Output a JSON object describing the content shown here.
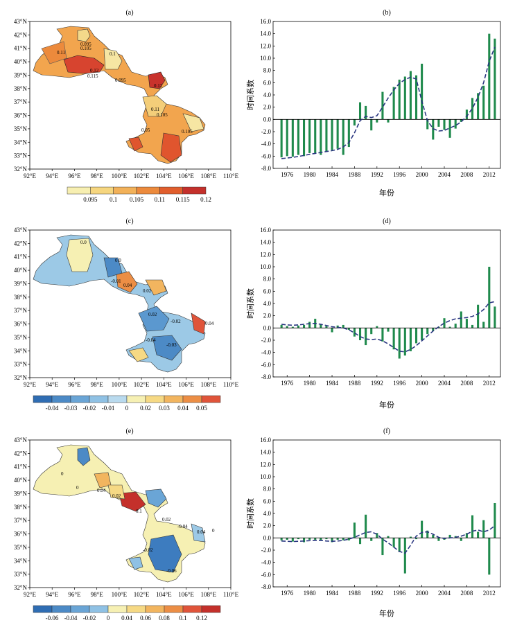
{
  "map_panels": [
    {
      "label": "(a)",
      "lat_ticks": [
        "32°N",
        "33°N",
        "34°N",
        "35°N",
        "36°N",
        "37°N",
        "38°N",
        "39°N",
        "40°N",
        "41°N",
        "42°N",
        "43°N"
      ],
      "lon_ticks": [
        "92°E",
        "94°E",
        "96°E",
        "98°E",
        "100°E",
        "102°E",
        "104°E",
        "106°E",
        "108°E",
        "110°E"
      ],
      "colorbar": {
        "colors": [
          "#f7efb1",
          "#f6d67f",
          "#f2b159",
          "#ec8a3c",
          "#e15e2d",
          "#c4302b"
        ],
        "tick_labels": [
          "0.095",
          "0.1",
          "0.105",
          "0.11",
          "0.115",
          "0.12"
        ]
      },
      "contour_labels": [
        "0.11",
        "0.095",
        "0.105",
        "0.12",
        "0.115",
        "0.1",
        "0.095",
        "0.11",
        "0.105",
        "0.105",
        "0.12",
        "0.05"
      ]
    },
    {
      "label": "(c)",
      "lat_ticks": [
        "32°N",
        "33°N",
        "34°N",
        "35°N",
        "36°N",
        "37°N",
        "38°N",
        "39°N",
        "40°N",
        "41°N",
        "42°N",
        "43°N"
      ],
      "lon_ticks": [
        "92°E",
        "94°E",
        "96°E",
        "98°E",
        "100°E",
        "102°E",
        "104°E",
        "106°E",
        "108°E",
        "110°E"
      ],
      "colorbar": {
        "colors": [
          "#2f6db3",
          "#4c8ac6",
          "#6aa5d6",
          "#8fc1e4",
          "#b9daee",
          "#f6f0b3",
          "#f6d984",
          "#f2b55f",
          "#ec8e45",
          "#e0543a"
        ],
        "tick_labels": [
          "-0.04",
          "-0.03",
          "-0.02",
          "-0.01",
          "0",
          "0.02",
          "0.03",
          "0.04",
          "0.05"
        ]
      },
      "contour_labels": [
        "0.0",
        "0.0",
        "0.04",
        "-0.01",
        "0.02",
        "-0.02",
        "0.02",
        "-0.04",
        "0.04",
        "-0.03"
      ]
    },
    {
      "label": "(e)",
      "lat_ticks": [
        "32°N",
        "33°N",
        "34°N",
        "35°N",
        "36°N",
        "37°N",
        "38°N",
        "39°N",
        "40°N",
        "41°N",
        "42°N",
        "43°N"
      ],
      "lon_ticks": [
        "92°E",
        "94°E",
        "96°E",
        "98°E",
        "100°E",
        "102°E",
        "104°E",
        "106°E",
        "108°E",
        "110°E"
      ],
      "colorbar": {
        "colors": [
          "#2f6db3",
          "#4c8ac6",
          "#6aa5d6",
          "#8fc1e4",
          "#f6f0b3",
          "#f6d984",
          "#f2b55f",
          "#ec8e45",
          "#e0543a",
          "#c4302b"
        ],
        "tick_labels": [
          "-0.06",
          "-0.04",
          "-0.02",
          "0",
          "0.04",
          "0.06",
          "0.08",
          "0.1",
          "0.12"
        ]
      },
      "contour_labels": [
        "0",
        "0",
        "0.04",
        "0.02",
        "0.1",
        "0.02",
        "-0.04",
        "0.04",
        "0",
        "-0.02",
        "-0.06"
      ]
    }
  ],
  "chart_data": [
    {
      "type": "bar",
      "label": "(b)",
      "ylabel": "时间系数",
      "xlabel": "年份",
      "ylim": [
        -8.0,
        16.0
      ],
      "yticks": [
        "-8.0",
        "-6.0",
        "-4.0",
        "-2.0",
        "0.0",
        "2.0",
        "4.0",
        "6.0",
        "8.0",
        "10.0",
        "12.0",
        "14.0",
        "16.0"
      ],
      "xticks": [
        "1976",
        "1980",
        "1984",
        "1988",
        "1992",
        "1996",
        "2000",
        "2004",
        "2008",
        "2012"
      ],
      "x": [
        1975,
        1976,
        1977,
        1978,
        1979,
        1980,
        1981,
        1982,
        1983,
        1984,
        1985,
        1986,
        1987,
        1988,
        1989,
        1990,
        1991,
        1992,
        1993,
        1994,
        1995,
        1996,
        1997,
        1998,
        1999,
        2000,
        2001,
        2002,
        2003,
        2004,
        2005,
        2006,
        2007,
        2008,
        2009,
        2010,
        2011,
        2012,
        2013
      ],
      "values": [
        -6.2,
        -6.0,
        -6.1,
        -5.8,
        -6.0,
        -5.5,
        -5.5,
        -5.8,
        -5.3,
        -5.0,
        -4.8,
        -5.8,
        -4.5,
        -1.0,
        2.8,
        2.2,
        -1.8,
        -0.5,
        4.5,
        -0.5,
        5.3,
        6.5,
        7.0,
        7.9,
        7.2,
        9.1,
        -1.6,
        -3.3,
        -1.2,
        -1.7,
        -3.0,
        -1.5,
        -0.4,
        1.6,
        3.5,
        4.3,
        5.5,
        14.0,
        13.2
      ],
      "trend": [
        -6.4,
        -6.3,
        -6.2,
        -6.05,
        -5.9,
        -5.7,
        -5.55,
        -5.4,
        -5.25,
        -5.1,
        -4.9,
        -4.5,
        -3.8,
        -2.2,
        -0.2,
        0.5,
        0.3,
        0.6,
        2.0,
        3.5,
        4.8,
        5.9,
        6.5,
        6.9,
        6.6,
        3.0,
        -0.2,
        -1.5,
        -1.9,
        -1.8,
        -1.4,
        -1.0,
        -0.4,
        0.5,
        1.8,
        3.6,
        6.0,
        9.5,
        11.8
      ]
    },
    {
      "type": "bar",
      "label": "(d)",
      "ylabel": "时间系数",
      "xlabel": "年份",
      "ylim": [
        -8.0,
        16.0
      ],
      "yticks": [
        "-8.0",
        "-6.0",
        "-4.0",
        "-2.0",
        "0.0",
        "2.0",
        "4.0",
        "6.0",
        "8.0",
        "10.0",
        "12.0",
        "14.0",
        "16.0"
      ],
      "xticks": [
        "1976",
        "1980",
        "1984",
        "1988",
        "1992",
        "1996",
        "2000",
        "2004",
        "2008",
        "2012"
      ],
      "x": [
        1975,
        1976,
        1977,
        1978,
        1979,
        1980,
        1981,
        1982,
        1983,
        1984,
        1985,
        1986,
        1987,
        1988,
        1989,
        1990,
        1991,
        1992,
        1993,
        1994,
        1995,
        1996,
        1997,
        1998,
        1999,
        2000,
        2001,
        2002,
        2003,
        2004,
        2005,
        2006,
        2007,
        2008,
        2009,
        2010,
        2011,
        2012,
        2013
      ],
      "values": [
        0.5,
        0.3,
        0.2,
        0.4,
        0.5,
        1.0,
        1.5,
        0.6,
        0.3,
        -0.7,
        0.4,
        0.5,
        -0.3,
        -1.4,
        -2.0,
        -2.8,
        -1.0,
        0.3,
        -2.2,
        -0.6,
        -3.5,
        -5.0,
        -4.5,
        -3.8,
        -2.5,
        -2.0,
        -1.0,
        -0.5,
        0.2,
        1.6,
        0.2,
        0.7,
        2.7,
        1.5,
        0.5,
        3.8,
        1.0,
        10.0,
        3.5
      ],
      "trend": [
        0.6,
        0.5,
        0.45,
        0.5,
        0.6,
        0.7,
        0.75,
        0.6,
        0.4,
        0.2,
        0.1,
        0.0,
        -0.3,
        -0.8,
        -1.4,
        -1.8,
        -1.9,
        -1.8,
        -2.1,
        -2.6,
        -3.2,
        -3.8,
        -3.9,
        -3.5,
        -2.9,
        -2.1,
        -1.3,
        -0.5,
        0.2,
        0.8,
        1.2,
        1.5,
        1.6,
        1.7,
        1.9,
        2.3,
        3.0,
        4.1,
        4.3
      ]
    },
    {
      "type": "bar",
      "label": "(f)",
      "ylabel": "时间系数",
      "xlabel": "年份",
      "ylim": [
        -8.0,
        16.0
      ],
      "yticks": [
        "-8.0",
        "-6.0",
        "-4.0",
        "-2.0",
        "0.0",
        "2.0",
        "4.0",
        "6.0",
        "8.0",
        "10.0",
        "12.0",
        "14.0",
        "16.0"
      ],
      "xticks": [
        "1976",
        "1980",
        "1984",
        "1988",
        "1992",
        "1996",
        "2000",
        "2004",
        "2008",
        "2012"
      ],
      "x": [
        1975,
        1976,
        1977,
        1978,
        1979,
        1980,
        1981,
        1982,
        1983,
        1984,
        1985,
        1986,
        1987,
        1988,
        1989,
        1990,
        1991,
        1992,
        1993,
        1994,
        1995,
        1996,
        1997,
        1998,
        1999,
        2000,
        2001,
        2002,
        2003,
        2004,
        2005,
        2006,
        2007,
        2008,
        2009,
        2010,
        2011,
        2012,
        2013
      ],
      "values": [
        -0.4,
        -0.3,
        -0.6,
        -0.2,
        -0.7,
        -0.3,
        -0.3,
        -0.4,
        -0.2,
        -0.7,
        -0.3,
        -0.4,
        -0.4,
        2.5,
        -1.0,
        3.8,
        -0.5,
        0.8,
        -2.8,
        0.3,
        -1.5,
        -2.3,
        -5.8,
        0.2,
        -0.2,
        2.8,
        1.2,
        0.5,
        -0.5,
        -0.3,
        0.5,
        0.3,
        -0.5,
        0.8,
        3.7,
        1.0,
        2.9,
        -6.0,
        5.7
      ],
      "trend": [
        -0.5,
        -0.55,
        -0.6,
        -0.55,
        -0.5,
        -0.45,
        -0.4,
        -0.4,
        -0.5,
        -0.55,
        -0.5,
        -0.4,
        -0.2,
        0.1,
        0.5,
        0.9,
        1.0,
        0.6,
        -0.2,
        -0.8,
        -1.5,
        -2.2,
        -2.5,
        -1.2,
        0.3,
        0.9,
        1.0,
        0.6,
        0.1,
        -0.1,
        0.0,
        0.1,
        0.3,
        0.6,
        1.1,
        1.3,
        1.0,
        1.3,
        2.0
      ]
    }
  ],
  "style": {
    "bar_color": "#1f8a4c",
    "trend_color": "#2a3680"
  }
}
